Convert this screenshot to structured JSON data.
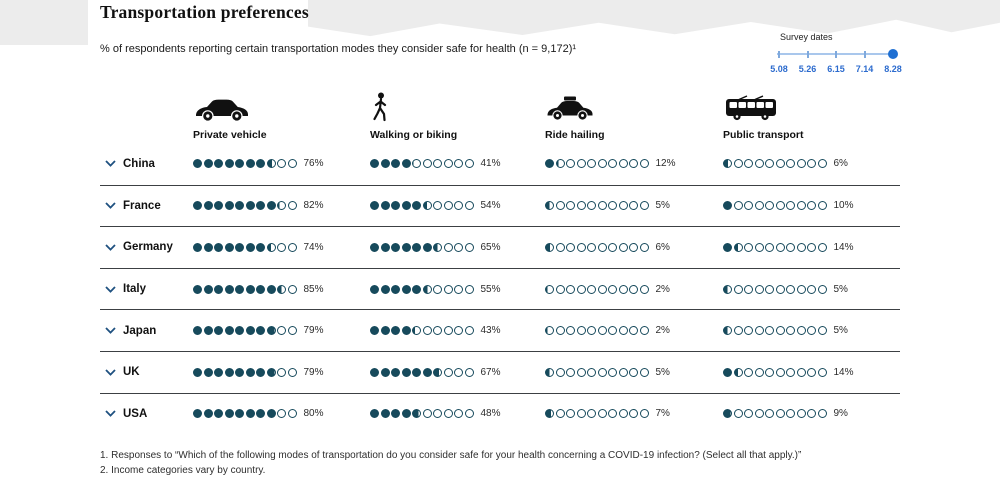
{
  "header": {
    "title": "Transportation preferences",
    "subtitle": "% of respondents reporting certain transportation modes they consider safe for health (n = 9,172)¹"
  },
  "survey_slider": {
    "label": "Survey dates",
    "dates": [
      "5.08",
      "5.26",
      "6.15",
      "7.14",
      "8.28"
    ],
    "selected": "8.28"
  },
  "columns": [
    {
      "label": "Private vehicle",
      "icon": "car-icon"
    },
    {
      "label": "Walking or biking",
      "icon": "pedestrian-icon"
    },
    {
      "label": "Ride hailing",
      "icon": "taxi-icon"
    },
    {
      "label": "Public transport",
      "icon": "bus-icon"
    }
  ],
  "rows": [
    {
      "country": "China",
      "values": [
        76,
        41,
        12,
        6
      ]
    },
    {
      "country": "France",
      "values": [
        82,
        54,
        5,
        10
      ]
    },
    {
      "country": "Germany",
      "values": [
        74,
        65,
        6,
        14
      ]
    },
    {
      "country": "Italy",
      "values": [
        85,
        55,
        2,
        5
      ]
    },
    {
      "country": "Japan",
      "values": [
        79,
        43,
        2,
        5
      ]
    },
    {
      "country": "UK",
      "values": [
        79,
        67,
        5,
        14
      ]
    },
    {
      "country": "USA",
      "values": [
        80,
        48,
        7,
        9
      ]
    }
  ],
  "footnotes": [
    "1. Responses to “Which of the following modes of transportation do you consider safe for your health concerning a COVID-19 infection? (Select all that apply.)”",
    "2. Income categories vary by country."
  ],
  "colors": {
    "dot": "#174a5c",
    "chevron": "#1f5180",
    "slider_accent": "#1e6fd2",
    "slider_track": "#a9c7ec",
    "date_label": "#2c6bce",
    "divider": "#3c4043",
    "band": "#ececec"
  },
  "chart_data": {
    "type": "table",
    "title": "Transportation preferences",
    "subtitle": "% of respondents reporting certain transportation modes they consider safe for health (n = 9,172)",
    "categories": [
      "Private vehicle",
      "Walking or biking",
      "Ride hailing",
      "Public transport"
    ],
    "series": [
      {
        "name": "China",
        "values": [
          76,
          41,
          12,
          6
        ]
      },
      {
        "name": "France",
        "values": [
          82,
          54,
          5,
          10
        ]
      },
      {
        "name": "Germany",
        "values": [
          74,
          65,
          6,
          14
        ]
      },
      {
        "name": "Italy",
        "values": [
          85,
          55,
          2,
          5
        ]
      },
      {
        "name": "Japan",
        "values": [
          79,
          43,
          2,
          5
        ]
      },
      {
        "name": "UK",
        "values": [
          79,
          67,
          5,
          14
        ]
      },
      {
        "name": "USA",
        "values": [
          80,
          48,
          7,
          9
        ]
      }
    ],
    "unit": "%",
    "dot_scale": "10 dots per value, each dot = 10%",
    "survey_dates": [
      "5.08",
      "5.26",
      "6.15",
      "7.14",
      "8.28"
    ],
    "selected_survey_date": "8.28"
  }
}
